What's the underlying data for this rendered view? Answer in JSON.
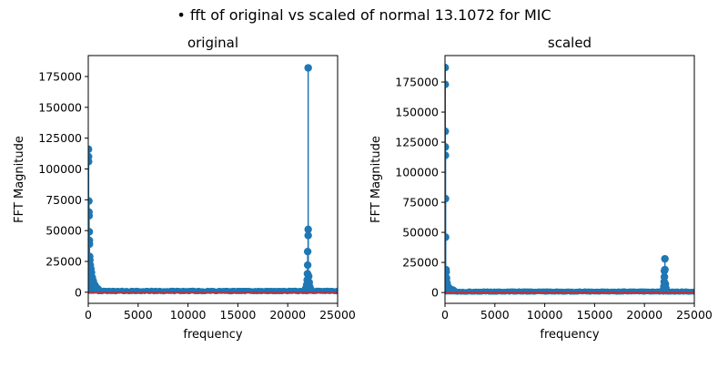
{
  "figure": {
    "suptitle": "• fft of original vs scaled of normal 13.1072 for MIC"
  },
  "colors": {
    "stem": "#1f77b4",
    "baseline": "#d62728",
    "axis": "#000000"
  },
  "chart_data": [
    {
      "type": "stem",
      "title": "original",
      "xlabel": "frequency",
      "ylabel": "FFT Magnitude",
      "xlim": [
        0,
        25000
      ],
      "ylim": [
        -9000,
        192000
      ],
      "xticks": [
        0,
        5000,
        10000,
        15000,
        20000,
        25000
      ],
      "yticks": [
        0,
        25000,
        50000,
        75000,
        100000,
        125000,
        150000,
        175000
      ],
      "grid": false,
      "noise_floor": 1500,
      "peaks": [
        {
          "x": 20,
          "y": 116000
        },
        {
          "x": 25,
          "y": 110000
        },
        {
          "x": 30,
          "y": 106000
        },
        {
          "x": 60,
          "y": 74000
        },
        {
          "x": 70,
          "y": 65000
        },
        {
          "x": 80,
          "y": 62000
        },
        {
          "x": 100,
          "y": 49000
        },
        {
          "x": 110,
          "y": 42000
        },
        {
          "x": 120,
          "y": 39000
        },
        {
          "x": 140,
          "y": 29000
        },
        {
          "x": 160,
          "y": 26000
        },
        {
          "x": 200,
          "y": 22000
        },
        {
          "x": 260,
          "y": 19000
        },
        {
          "x": 320,
          "y": 16000
        },
        {
          "x": 400,
          "y": 12000
        },
        {
          "x": 500,
          "y": 9000
        },
        {
          "x": 650,
          "y": 6000
        },
        {
          "x": 800,
          "y": 4000
        },
        {
          "x": 1000,
          "y": 2500
        },
        {
          "x": 22050,
          "y": 182000
        },
        {
          "x": 22050,
          "y": 51000
        },
        {
          "x": 22050,
          "y": 46000
        },
        {
          "x": 22000,
          "y": 33000
        },
        {
          "x": 22000,
          "y": 22000
        },
        {
          "x": 21980,
          "y": 15000
        },
        {
          "x": 22100,
          "y": 13000
        },
        {
          "x": 21950,
          "y": 10000
        },
        {
          "x": 22150,
          "y": 8000
        },
        {
          "x": 21900,
          "y": 6000
        },
        {
          "x": 22200,
          "y": 4500
        },
        {
          "x": 21800,
          "y": 3000
        },
        {
          "x": 22300,
          "y": 2500
        }
      ]
    },
    {
      "type": "stem",
      "title": "scaled",
      "xlabel": "frequency",
      "ylabel": "FFT Magnitude",
      "xlim": [
        0,
        25000
      ],
      "ylim": [
        -9000,
        197000
      ],
      "xticks": [
        0,
        5000,
        10000,
        15000,
        20000,
        25000
      ],
      "yticks": [
        0,
        25000,
        50000,
        75000,
        100000,
        125000,
        150000,
        175000
      ],
      "grid": false,
      "noise_floor": 1200,
      "peaks": [
        {
          "x": 20,
          "y": 187000
        },
        {
          "x": 25,
          "y": 173000
        },
        {
          "x": 30,
          "y": 134000
        },
        {
          "x": 35,
          "y": 121000
        },
        {
          "x": 40,
          "y": 114000
        },
        {
          "x": 50,
          "y": 78000
        },
        {
          "x": 60,
          "y": 46000
        },
        {
          "x": 100,
          "y": 19000
        },
        {
          "x": 120,
          "y": 17000
        },
        {
          "x": 150,
          "y": 12000
        },
        {
          "x": 200,
          "y": 8000
        },
        {
          "x": 300,
          "y": 5000
        },
        {
          "x": 500,
          "y": 3000
        },
        {
          "x": 800,
          "y": 2000
        },
        {
          "x": 22050,
          "y": 28000
        },
        {
          "x": 22050,
          "y": 19000
        },
        {
          "x": 22000,
          "y": 18000
        },
        {
          "x": 22000,
          "y": 13000
        },
        {
          "x": 21980,
          "y": 9000
        },
        {
          "x": 22100,
          "y": 7000
        },
        {
          "x": 21950,
          "y": 5000
        },
        {
          "x": 22150,
          "y": 3500
        },
        {
          "x": 21900,
          "y": 2500
        }
      ]
    }
  ]
}
